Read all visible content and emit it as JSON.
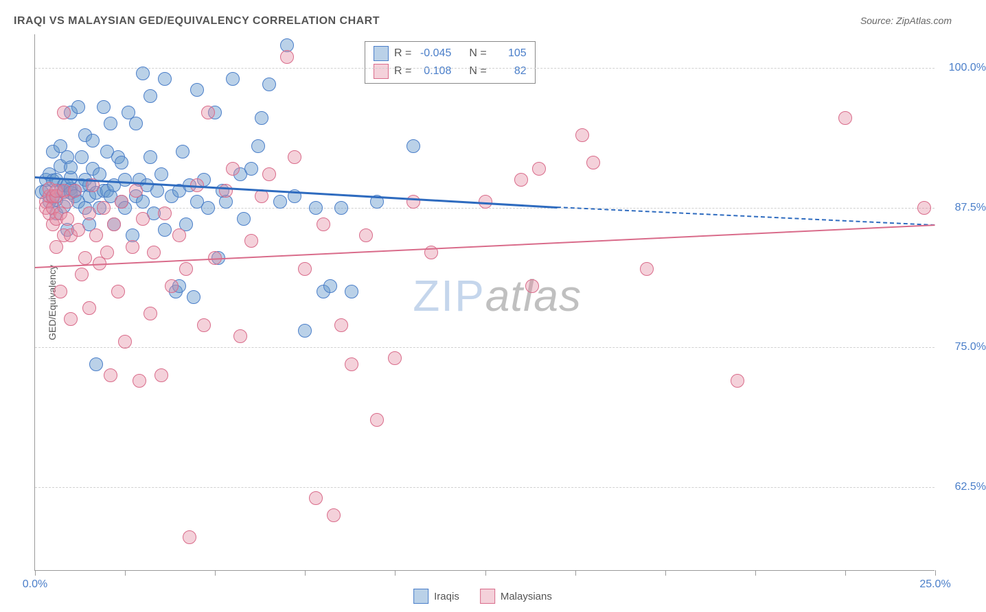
{
  "chart": {
    "type": "scatter",
    "title": "IRAQI VS MALAYSIAN GED/EQUIVALENCY CORRELATION CHART",
    "source": "Source: ZipAtlas.com",
    "y_axis_label": "GED/Equivalency",
    "background_color": "#ffffff",
    "grid_color": "#d0d0d0",
    "axis_color": "#999999",
    "text_color": "#555555",
    "value_color": "#4a7ec9",
    "xlim": [
      0,
      25
    ],
    "ylim": [
      55,
      103
    ],
    "x_ticks": [
      0,
      2.5,
      5,
      7.5,
      10,
      12.5,
      15,
      17.5,
      20,
      22.5,
      25
    ],
    "x_tick_labels": {
      "0": "0.0%",
      "25": "25.0%"
    },
    "y_ticks": [
      62.5,
      75.0,
      87.5,
      100.0
    ],
    "y_tick_labels": [
      "62.5%",
      "75.0%",
      "87.5%",
      "100.0%"
    ],
    "watermark": {
      "part1": "ZIP",
      "part2": "atlas"
    },
    "marker_radius": 10,
    "marker_opacity": 0.55,
    "series": [
      {
        "name": "Iraqis",
        "color": "#6699cc",
        "fill": "rgba(102,153,204,0.45)",
        "stroke": "#4a7ec9",
        "R": "-0.045",
        "N": "105",
        "trend": {
          "x1": 0,
          "y1": 90.3,
          "x2": 14.5,
          "y2": 87.6,
          "dash_x2": 25,
          "dash_y2": 86.0,
          "line_color": "#2e6bbf",
          "width": 2.5
        },
        "points": [
          [
            0.2,
            88.9
          ],
          [
            0.3,
            89.0
          ],
          [
            0.3,
            90.0
          ],
          [
            0.4,
            88.0
          ],
          [
            0.4,
            90.5
          ],
          [
            0.5,
            89.9
          ],
          [
            0.5,
            88.4
          ],
          [
            0.5,
            92.5
          ],
          [
            0.6,
            90.0
          ],
          [
            0.6,
            88.2
          ],
          [
            0.6,
            87.0
          ],
          [
            0.7,
            89.0
          ],
          [
            0.7,
            93.0
          ],
          [
            0.7,
            91.2
          ],
          [
            0.8,
            88.9
          ],
          [
            0.8,
            89.5
          ],
          [
            0.8,
            87.6
          ],
          [
            0.9,
            85.5
          ],
          [
            0.9,
            92.0
          ],
          [
            0.9,
            89.5
          ],
          [
            1.0,
            89.2
          ],
          [
            1.0,
            90.2
          ],
          [
            1.0,
            88.8
          ],
          [
            1.0,
            91.1
          ],
          [
            1.0,
            96.0
          ],
          [
            1.1,
            89.0
          ],
          [
            1.1,
            88.5
          ],
          [
            1.2,
            88.0
          ],
          [
            1.2,
            96.5
          ],
          [
            1.3,
            92.0
          ],
          [
            1.3,
            89.5
          ],
          [
            1.4,
            90.0
          ],
          [
            1.4,
            87.5
          ],
          [
            1.4,
            94.0
          ],
          [
            1.5,
            88.5
          ],
          [
            1.5,
            89.5
          ],
          [
            1.5,
            86.0
          ],
          [
            1.6,
            93.5
          ],
          [
            1.6,
            91.0
          ],
          [
            1.7,
            88.8
          ],
          [
            1.7,
            73.5
          ],
          [
            1.8,
            90.5
          ],
          [
            1.8,
            87.5
          ],
          [
            1.9,
            96.5
          ],
          [
            1.9,
            89.0
          ],
          [
            2.0,
            89.0
          ],
          [
            2.0,
            92.5
          ],
          [
            2.1,
            88.5
          ],
          [
            2.1,
            95.0
          ],
          [
            2.2,
            86.0
          ],
          [
            2.2,
            89.5
          ],
          [
            2.3,
            92.0
          ],
          [
            2.4,
            91.5
          ],
          [
            2.4,
            88.0
          ],
          [
            2.5,
            87.5
          ],
          [
            2.5,
            90.0
          ],
          [
            2.6,
            96.0
          ],
          [
            2.7,
            85.0
          ],
          [
            2.8,
            88.5
          ],
          [
            2.8,
            95.0
          ],
          [
            2.9,
            90.0
          ],
          [
            3.0,
            88.0
          ],
          [
            3.0,
            99.5
          ],
          [
            3.1,
            89.5
          ],
          [
            3.2,
            92.0
          ],
          [
            3.2,
            97.5
          ],
          [
            3.3,
            87.0
          ],
          [
            3.4,
            89.0
          ],
          [
            3.5,
            90.5
          ],
          [
            3.6,
            85.5
          ],
          [
            3.6,
            99.0
          ],
          [
            3.8,
            88.5
          ],
          [
            3.9,
            80.0
          ],
          [
            4.0,
            89.0
          ],
          [
            4.0,
            80.5
          ],
          [
            4.1,
            92.5
          ],
          [
            4.2,
            86.0
          ],
          [
            4.3,
            89.5
          ],
          [
            4.4,
            79.5
          ],
          [
            4.5,
            88.0
          ],
          [
            4.5,
            98.0
          ],
          [
            4.7,
            90.0
          ],
          [
            4.8,
            87.5
          ],
          [
            5.0,
            96.0
          ],
          [
            5.1,
            83.0
          ],
          [
            5.2,
            89.0
          ],
          [
            5.3,
            88.0
          ],
          [
            5.5,
            99.0
          ],
          [
            5.7,
            90.5
          ],
          [
            5.8,
            86.5
          ],
          [
            6.0,
            91.0
          ],
          [
            6.2,
            93.0
          ],
          [
            6.3,
            95.5
          ],
          [
            6.5,
            98.5
          ],
          [
            6.8,
            88.0
          ],
          [
            7.0,
            102.0
          ],
          [
            7.2,
            88.5
          ],
          [
            7.5,
            76.5
          ],
          [
            7.8,
            87.5
          ],
          [
            8.0,
            80.0
          ],
          [
            8.2,
            80.5
          ],
          [
            8.5,
            87.5
          ],
          [
            8.8,
            80.0
          ],
          [
            9.5,
            88.0
          ],
          [
            10.5,
            93.0
          ]
        ]
      },
      {
        "name": "Malaysians",
        "color": "#e38ba2",
        "fill": "rgba(227,139,162,0.40)",
        "stroke": "#d96b8a",
        "R": "0.108",
        "N": "82",
        "trend": {
          "x1": 0,
          "y1": 82.2,
          "x2": 25,
          "y2": 86.0,
          "line_color": "#d96b8a",
          "width": 2
        },
        "points": [
          [
            0.3,
            88.0
          ],
          [
            0.3,
            87.5
          ],
          [
            0.4,
            87.0
          ],
          [
            0.4,
            88.5
          ],
          [
            0.4,
            89.2
          ],
          [
            0.5,
            87.5
          ],
          [
            0.5,
            86.0
          ],
          [
            0.5,
            88.5
          ],
          [
            0.6,
            86.5
          ],
          [
            0.6,
            88.5
          ],
          [
            0.6,
            89.0
          ],
          [
            0.6,
            84.0
          ],
          [
            0.7,
            87.0
          ],
          [
            0.7,
            80.0
          ],
          [
            0.8,
            89.0
          ],
          [
            0.8,
            85.0
          ],
          [
            0.8,
            96.0
          ],
          [
            0.9,
            86.5
          ],
          [
            0.9,
            88.0
          ],
          [
            1.0,
            77.5
          ],
          [
            1.0,
            85.0
          ],
          [
            1.1,
            89.0
          ],
          [
            1.2,
            85.5
          ],
          [
            1.3,
            81.5
          ],
          [
            1.4,
            83.0
          ],
          [
            1.5,
            87.0
          ],
          [
            1.5,
            78.5
          ],
          [
            1.6,
            89.5
          ],
          [
            1.7,
            85.0
          ],
          [
            1.8,
            82.5
          ],
          [
            1.9,
            87.5
          ],
          [
            2.0,
            83.5
          ],
          [
            2.1,
            72.5
          ],
          [
            2.2,
            86.0
          ],
          [
            2.3,
            80.0
          ],
          [
            2.4,
            88.0
          ],
          [
            2.5,
            75.5
          ],
          [
            2.7,
            84.0
          ],
          [
            2.8,
            89.0
          ],
          [
            2.9,
            72.0
          ],
          [
            3.0,
            86.5
          ],
          [
            3.2,
            78.0
          ],
          [
            3.3,
            83.5
          ],
          [
            3.5,
            72.5
          ],
          [
            3.6,
            87.0
          ],
          [
            3.8,
            80.5
          ],
          [
            4.0,
            85.0
          ],
          [
            4.2,
            82.0
          ],
          [
            4.3,
            58.0
          ],
          [
            4.5,
            89.5
          ],
          [
            4.7,
            77.0
          ],
          [
            4.8,
            96.0
          ],
          [
            5.0,
            83.0
          ],
          [
            5.3,
            89.0
          ],
          [
            5.5,
            91.0
          ],
          [
            5.7,
            76.0
          ],
          [
            6.0,
            84.5
          ],
          [
            6.3,
            88.5
          ],
          [
            6.5,
            90.5
          ],
          [
            7.0,
            101.0
          ],
          [
            7.2,
            92.0
          ],
          [
            7.5,
            82.0
          ],
          [
            7.8,
            61.5
          ],
          [
            8.0,
            86.0
          ],
          [
            8.3,
            60.0
          ],
          [
            8.5,
            77.0
          ],
          [
            8.8,
            73.5
          ],
          [
            9.2,
            85.0
          ],
          [
            9.5,
            68.5
          ],
          [
            10.0,
            74.0
          ],
          [
            10.5,
            88.0
          ],
          [
            11.0,
            83.5
          ],
          [
            12.5,
            88.0
          ],
          [
            13.5,
            90.0
          ],
          [
            13.8,
            80.5
          ],
          [
            14.0,
            91.0
          ],
          [
            15.2,
            94.0
          ],
          [
            15.5,
            91.5
          ],
          [
            17.0,
            82.0
          ],
          [
            19.5,
            72.0
          ],
          [
            22.5,
            95.5
          ],
          [
            24.7,
            87.5
          ]
        ]
      }
    ],
    "legend": {
      "r_label": "R =",
      "n_label": "N ="
    },
    "bottom_legend": [
      "Iraqis",
      "Malaysians"
    ]
  }
}
